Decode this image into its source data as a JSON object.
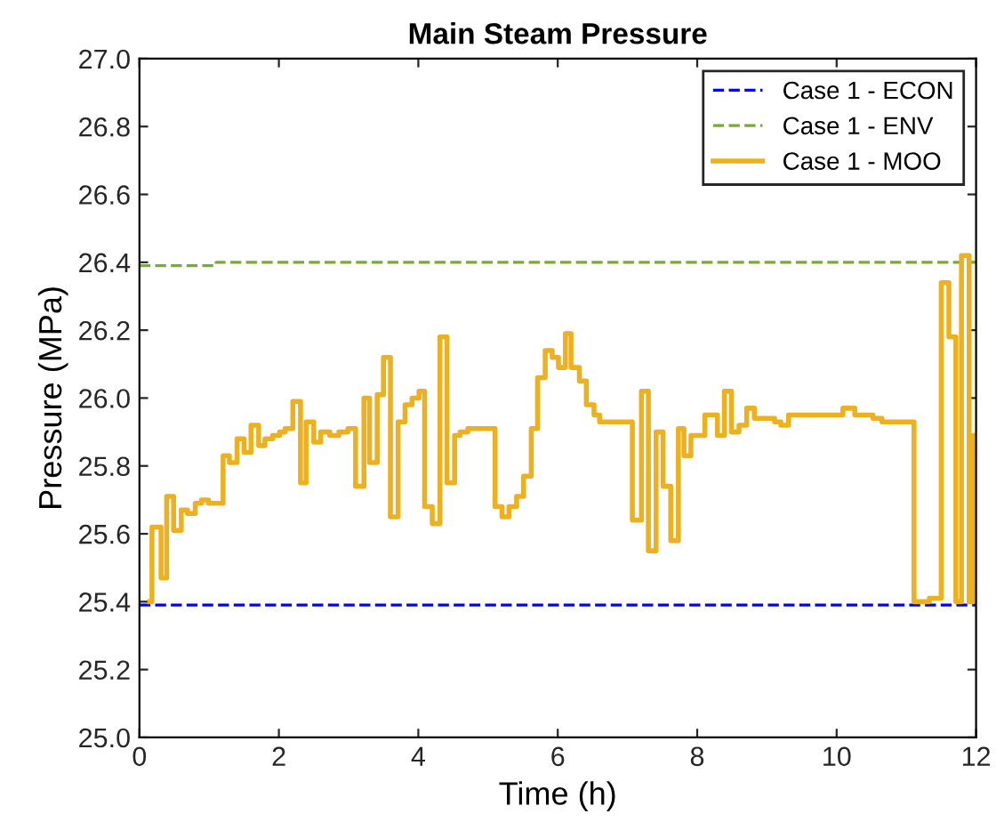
{
  "chart_data": {
    "type": "step",
    "title": "Main Steam Pressure",
    "xlabel": "Time (h)",
    "ylabel": "Pressure (MPa)",
    "xlim": [
      0,
      12
    ],
    "xticks": [
      0,
      2,
      4,
      6,
      8,
      10,
      12
    ],
    "ylim": [
      25.0,
      27.0
    ],
    "yticks": [
      {
        "value": 25.0,
        "label": "25.0"
      },
      {
        "value": 25.2,
        "label": "25.2"
      },
      {
        "value": 25.4,
        "label": "25.4"
      },
      {
        "value": 25.6,
        "label": "25.6"
      },
      {
        "value": 25.8,
        "label": "25.8"
      },
      {
        "value": 26.0,
        "label": "26.0"
      },
      {
        "value": 26.2,
        "label": "26.2"
      },
      {
        "value": 26.4,
        "label": "26.4"
      },
      {
        "value": 26.6,
        "label": "26.6"
      },
      {
        "value": 26.8,
        "label": "26.8"
      },
      {
        "value": 27.0,
        "label": "27.0"
      }
    ],
    "grid": false,
    "legend": "top right",
    "series": [
      {
        "name": "Case 1 - ECON",
        "color": "#0000ff",
        "line_style": "dashed",
        "x": [
          0,
          12
        ],
        "values": [
          25.39,
          25.39
        ]
      },
      {
        "name": "Case 1 - ENV",
        "color": "#77ac30",
        "line_style": "dashed",
        "x": [
          0,
          1.1,
          12
        ],
        "values": [
          26.39,
          26.4,
          26.4
        ]
      },
      {
        "name": "Case 1 - MOO",
        "color": "#edb120",
        "line_style": "solid",
        "x": [
          0.15,
          0.18,
          0.31,
          0.39,
          0.49,
          0.6,
          0.69,
          0.8,
          0.89,
          0.99,
          1.07,
          1.2,
          1.29,
          1.4,
          1.5,
          1.6,
          1.71,
          1.8,
          1.91,
          2.01,
          2.09,
          2.2,
          2.31,
          2.39,
          2.5,
          2.6,
          2.73,
          2.86,
          2.99,
          3.1,
          3.22,
          3.3,
          3.41,
          3.5,
          3.6,
          3.71,
          3.81,
          3.91,
          4.01,
          4.09,
          4.2,
          4.31,
          4.41,
          4.52,
          4.6,
          4.71,
          4.82,
          5.1,
          5.2,
          5.3,
          5.41,
          5.51,
          5.62,
          5.71,
          5.82,
          5.92,
          6.01,
          6.11,
          6.19,
          6.31,
          6.41,
          6.52,
          6.6,
          6.77,
          7.07,
          7.2,
          7.3,
          7.41,
          7.51,
          7.62,
          7.73,
          7.81,
          7.91,
          8.01,
          8.11,
          8.29,
          8.39,
          8.49,
          8.6,
          8.71,
          8.82,
          8.92,
          9.11,
          9.2,
          9.31,
          9.41,
          9.67,
          9.92,
          10.09,
          10.26,
          10.52,
          10.65,
          11.11,
          11.33,
          11.5,
          11.61,
          11.71,
          11.79,
          11.9,
          11.96,
          12.0
        ],
        "values": [
          25.4,
          25.62,
          25.47,
          25.71,
          25.61,
          25.67,
          25.66,
          25.69,
          25.7,
          25.69,
          25.69,
          25.83,
          25.81,
          25.88,
          25.84,
          25.92,
          25.86,
          25.88,
          25.89,
          25.9,
          25.91,
          25.99,
          25.75,
          25.93,
          25.87,
          25.9,
          25.89,
          25.9,
          25.91,
          25.74,
          26.0,
          25.81,
          26.01,
          26.12,
          25.65,
          25.93,
          25.98,
          26.0,
          26.02,
          25.68,
          25.63,
          26.18,
          25.75,
          25.89,
          25.9,
          25.91,
          25.91,
          25.68,
          25.65,
          25.68,
          25.71,
          25.77,
          25.91,
          26.06,
          26.14,
          26.12,
          26.09,
          26.19,
          26.09,
          26.05,
          25.98,
          25.95,
          25.93,
          25.93,
          25.64,
          26.02,
          25.55,
          25.9,
          25.74,
          25.58,
          25.91,
          25.83,
          25.89,
          25.89,
          25.95,
          25.89,
          26.02,
          25.9,
          25.92,
          25.97,
          25.94,
          25.94,
          25.93,
          25.92,
          25.95,
          25.95,
          25.95,
          25.95,
          25.97,
          25.95,
          25.94,
          25.93,
          25.4,
          25.41,
          26.34,
          26.18,
          25.4,
          26.42,
          25.4,
          25.89,
          25.89
        ]
      }
    ]
  }
}
